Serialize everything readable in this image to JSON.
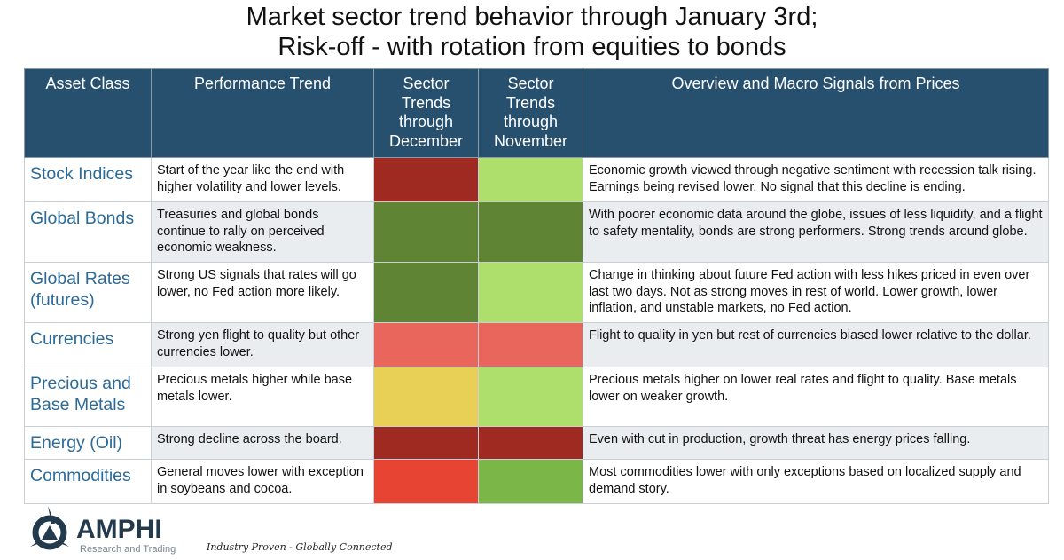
{
  "title_line1": "Market sector trend behavior through January 3rd;",
  "title_line2": "Risk-off - with rotation from equities to bonds",
  "headers": [
    "Asset Class",
    "Performance Trend",
    "Sector Trends through December",
    "Sector Trends through November",
    "Overview and Macro Signals from Prices"
  ],
  "rows": [
    {
      "asset": "Stock Indices",
      "trend": "Start of the year like the end with higher volatility and lower levels.",
      "dec_color": "#9e2a22",
      "nov_color": "#aedf6d",
      "overview": "Economic growth viewed through negative sentiment with recession talk rising. Earnings being revised lower. No signal that this decline is ending."
    },
    {
      "asset": "Global Bonds",
      "trend": "Treasuries and global bonds continue to rally on perceived economic weakness.",
      "dec_color": "#5f8433",
      "nov_color": "#5f8433",
      "overview": "With poorer economic data around the globe, issues of less liquidity, and a flight to safety mentality, bonds are strong performers. Strong trends around globe."
    },
    {
      "asset": "Global Rates (futures)",
      "trend": "Strong US signals that rates will go lower, no Fed action more likely.",
      "dec_color": "#5f8433",
      "nov_color": "#aedf6d",
      "overview": "Change in thinking about future Fed action with less hikes priced in even over last two days. Not as strong moves in rest of world. Lower growth, lower inflation, and unstable markets, no Fed action."
    },
    {
      "asset": "Currencies",
      "trend": "Strong yen flight to quality but other currencies lower.",
      "dec_color": "#e8665b",
      "nov_color": "#e8665b",
      "overview": "Flight to quality in yen but rest of currencies biased lower relative to the dollar."
    },
    {
      "asset": "Precious and Base Metals",
      "trend": "Precious metals higher while base metals lower.",
      "dec_color": "#e8cf55",
      "nov_color": "#aedf6d",
      "overview": "Precious metals higher on lower real rates and flight to quality. Base metals lower on weaker growth."
    },
    {
      "asset": "Energy (Oil)",
      "trend": "Strong decline across the board.",
      "dec_color": "#9e2a22",
      "nov_color": "#9e2a22",
      "overview": "Even with cut in production, growth threat has energy prices falling."
    },
    {
      "asset": "Commodities",
      "trend": "General moves lower with exception in soybeans and cocoa.",
      "dec_color": "#e84433",
      "nov_color": "#7ab648",
      "overview": "Most commodities lower with only exceptions based on localized supply and demand story."
    }
  ],
  "logo": {
    "name": "AMPHI",
    "sub": "Research and Trading"
  },
  "tagline": "Industry Proven - Globally Connected"
}
